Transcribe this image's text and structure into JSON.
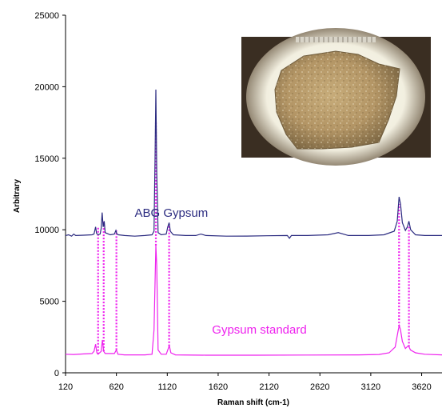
{
  "chart_data": {
    "type": "line",
    "xlabel": "Raman shift (cm-1)",
    "ylabel": "Arbitrary",
    "xlim": [
      120,
      3820
    ],
    "ylim": [
      0,
      25000
    ],
    "x_ticks": [
      "120",
      "620",
      "1120",
      "1620",
      "2120",
      "2620",
      "3120",
      "3620"
    ],
    "y_ticks": [
      "0",
      "5000",
      "10000",
      "15000",
      "20000",
      "25000"
    ],
    "grid": false,
    "series": [
      {
        "name": "ABG Gypsum",
        "color": "#2b2b80",
        "label_at": [
          800,
          10900
        ],
        "points": [
          [
            120,
            9600
          ],
          [
            150,
            9650
          ],
          [
            180,
            9550
          ],
          [
            200,
            9700
          ],
          [
            220,
            9600
          ],
          [
            300,
            9620
          ],
          [
            380,
            9650
          ],
          [
            400,
            9700
          ],
          [
            415,
            10200
          ],
          [
            425,
            9750
          ],
          [
            440,
            9650
          ],
          [
            460,
            9700
          ],
          [
            470,
            10100
          ],
          [
            480,
            11200
          ],
          [
            490,
            10200
          ],
          [
            500,
            10600
          ],
          [
            510,
            9800
          ],
          [
            560,
            9650
          ],
          [
            600,
            9700
          ],
          [
            615,
            9950
          ],
          [
            625,
            9700
          ],
          [
            640,
            9650
          ],
          [
            700,
            9600
          ],
          [
            800,
            9550
          ],
          [
            900,
            9600
          ],
          [
            970,
            9650
          ],
          [
            990,
            9900
          ],
          [
            1000,
            15000
          ],
          [
            1008,
            19800
          ],
          [
            1016,
            14000
          ],
          [
            1030,
            9800
          ],
          [
            1060,
            9650
          ],
          [
            1110,
            9700
          ],
          [
            1125,
            10200
          ],
          [
            1138,
            10500
          ],
          [
            1150,
            9900
          ],
          [
            1180,
            9650
          ],
          [
            1300,
            9600
          ],
          [
            1400,
            9600
          ],
          [
            1450,
            9700
          ],
          [
            1500,
            9600
          ],
          [
            1700,
            9550
          ],
          [
            1900,
            9560
          ],
          [
            2100,
            9580
          ],
          [
            2300,
            9600
          ],
          [
            2320,
            9400
          ],
          [
            2340,
            9600
          ],
          [
            2500,
            9600
          ],
          [
            2700,
            9650
          ],
          [
            2800,
            9800
          ],
          [
            2900,
            9600
          ],
          [
            3100,
            9600
          ],
          [
            3250,
            9650
          ],
          [
            3350,
            9900
          ],
          [
            3380,
            10600
          ],
          [
            3398,
            12300
          ],
          [
            3412,
            11800
          ],
          [
            3430,
            10500
          ],
          [
            3460,
            9950
          ],
          [
            3480,
            10200
          ],
          [
            3495,
            10600
          ],
          [
            3512,
            10000
          ],
          [
            3560,
            9650
          ],
          [
            3650,
            9600
          ],
          [
            3820,
            9600
          ]
        ]
      },
      {
        "name": "Gypsum standard",
        "color": "#ee22ee",
        "label_at": [
          1560,
          2750
        ],
        "points": [
          [
            120,
            1300
          ],
          [
            200,
            1280
          ],
          [
            300,
            1320
          ],
          [
            380,
            1350
          ],
          [
            400,
            1500
          ],
          [
            415,
            2000
          ],
          [
            428,
            1400
          ],
          [
            440,
            1300
          ],
          [
            470,
            1500
          ],
          [
            482,
            2300
          ],
          [
            495,
            1500
          ],
          [
            510,
            1350
          ],
          [
            600,
            1350
          ],
          [
            620,
            1600
          ],
          [
            635,
            1300
          ],
          [
            700,
            1250
          ],
          [
            900,
            1250
          ],
          [
            970,
            1300
          ],
          [
            990,
            3000
          ],
          [
            1008,
            8900
          ],
          [
            1016,
            7500
          ],
          [
            1030,
            1600
          ],
          [
            1060,
            1300
          ],
          [
            1110,
            1300
          ],
          [
            1125,
            1600
          ],
          [
            1140,
            1900
          ],
          [
            1155,
            1400
          ],
          [
            1200,
            1250
          ],
          [
            1500,
            1230
          ],
          [
            2000,
            1230
          ],
          [
            2500,
            1240
          ],
          [
            3000,
            1250
          ],
          [
            3200,
            1280
          ],
          [
            3300,
            1400
          ],
          [
            3360,
            1800
          ],
          [
            3390,
            3000
          ],
          [
            3400,
            3300
          ],
          [
            3412,
            3000
          ],
          [
            3430,
            2200
          ],
          [
            3460,
            1700
          ],
          [
            3490,
            1900
          ],
          [
            3510,
            1600
          ],
          [
            3560,
            1400
          ],
          [
            3650,
            1300
          ],
          [
            3820,
            1250
          ]
        ]
      }
    ],
    "peak_markers": {
      "style": "dotted",
      "color": "#ee22ee",
      "x": [
        440,
        495,
        620,
        1008,
        1138,
        3398,
        3495
      ],
      "to_y": [
        10200,
        10600,
        9950,
        17500,
        10400,
        11800,
        10200
      ]
    }
  },
  "inset_photo": {
    "name": "gypsum-sample-photo",
    "border_color": "#4a3b2a",
    "frame_color": "#3a2e22",
    "rock_color": "#b39565"
  }
}
